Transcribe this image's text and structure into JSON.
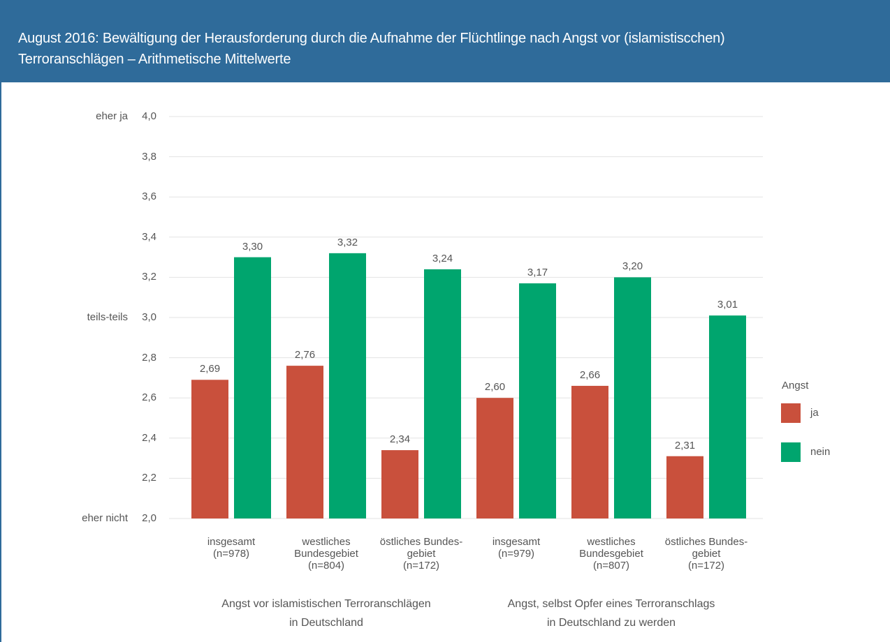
{
  "chart_data": {
    "type": "bar",
    "title": "August 2016: Bewältigung  der Herausforderung durch die Aufnahme der Flüchtlinge nach Angst vor (islamistiscchen)\nTerroranschlägen – Arithmetische Mittelwerte",
    "categories": [
      "insgesamt\n(n=978)",
      "westliches\nBundesgebiet\n(n=804)",
      "östliches Bundes-\ngebiet\n(n=172)",
      "insgesamt\n(n=979)",
      "westliches\nBundesgebiet\n(n=807)",
      "östliches Bundes-\ngebiet\n(n=172)"
    ],
    "groups": [
      "Angst vor islamistischen Terroranschlägen\nin Deutschland",
      "Angst, selbst Opfer eines Terroranschlags\nin Deutschland zu werden"
    ],
    "legend_title": "Angst",
    "series": [
      {
        "name": "ja",
        "color": "#c9503c",
        "values": [
          2.69,
          2.76,
          2.34,
          2.6,
          2.66,
          2.31
        ],
        "value_labels": [
          "2,69",
          "2,76",
          "2,34",
          "2,60",
          "2,66",
          "2,31"
        ]
      },
      {
        "name": "nein",
        "color": "#00a56e",
        "values": [
          3.3,
          3.32,
          3.24,
          3.17,
          3.2,
          3.01
        ],
        "value_labels": [
          "3,30",
          "3,32",
          "3,24",
          "3,17",
          "3,20",
          "3,01"
        ]
      }
    ],
    "ylim": [
      2.0,
      4.0
    ],
    "yticks": [
      {
        "value": 2.0,
        "label": "2,0"
      },
      {
        "value": 2.2,
        "label": "2,2"
      },
      {
        "value": 2.4,
        "label": "2,4"
      },
      {
        "value": 2.6,
        "label": "2,6"
      },
      {
        "value": 2.8,
        "label": "2,8"
      },
      {
        "value": 3.0,
        "label": "3,0"
      },
      {
        "value": 3.2,
        "label": "3,2"
      },
      {
        "value": 3.4,
        "label": "3,4"
      },
      {
        "value": 3.6,
        "label": "3,6"
      },
      {
        "value": 3.8,
        "label": "3,8"
      },
      {
        "value": 4.0,
        "label": "4,0"
      }
    ],
    "y_annotations": [
      {
        "value": 4.0,
        "label": "eher ja"
      },
      {
        "value": 3.0,
        "label": "teils-teils"
      },
      {
        "value": 2.0,
        "label": "eher nicht"
      }
    ],
    "grid": true,
    "legend": "right"
  }
}
